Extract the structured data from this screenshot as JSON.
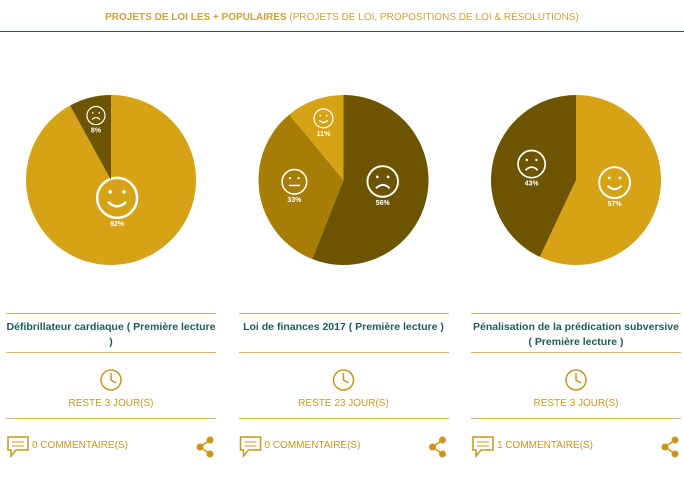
{
  "header": {
    "title": "PROJETS DE LOI LES + POPULAIRES",
    "subtitle": "(PROJETS DE LOI, PROPOSITIONS DE LOI & RÉSOLUTIONS)"
  },
  "cards": [
    {
      "pie": {
        "type": "pie",
        "values": [
          92,
          8
        ],
        "value_labels": [
          "92%",
          "8%"
        ],
        "colors": [
          "#d6a216",
          "#6d5400"
        ],
        "faces": [
          "happy",
          "sad"
        ]
      },
      "title": "Défibrillateur cardiaque ( Première lecture )",
      "remaining": "RESTE 3 JOUR(S)",
      "comments": "0 COMMENTAIRE(S)"
    },
    {
      "pie": {
        "type": "pie",
        "values": [
          56,
          33,
          11
        ],
        "value_labels": [
          "56%",
          "33%",
          "11%"
        ],
        "colors": [
          "#6d5400",
          "#a87d06",
          "#d6a216"
        ],
        "faces": [
          "sad",
          "neutral",
          "happy"
        ]
      },
      "title": "Loi de finances 2017 ( Première lecture )",
      "remaining": "RESTE 23 JOUR(S)",
      "comments": "0 COMMENTAIRE(S)"
    },
    {
      "pie": {
        "type": "pie",
        "values": [
          57,
          43
        ],
        "value_labels": [
          "57%",
          "43%"
        ],
        "colors": [
          "#d6a216",
          "#6d5400"
        ],
        "faces": [
          "happy",
          "sad"
        ]
      },
      "title": "Pénalisation de la prédication subversive ( Première lecture )",
      "remaining": "RESTE 3 JOUR(S)",
      "comments": "1 COMMENTAIRE(S)"
    }
  ]
}
